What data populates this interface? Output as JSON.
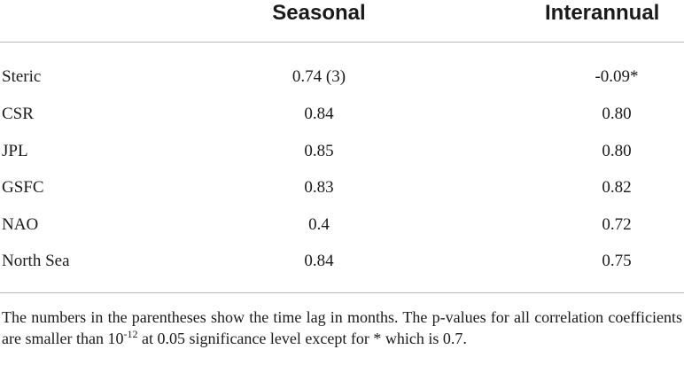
{
  "header": {
    "col_seasonal": "Seasonal",
    "col_interannual": "Interannual"
  },
  "rows": [
    {
      "label": "Steric",
      "seasonal": "0.74 (3)",
      "interannual": "-0.09*"
    },
    {
      "label": "CSR",
      "seasonal": "0.84",
      "interannual": "0.80"
    },
    {
      "label": "JPL",
      "seasonal": "0.85",
      "interannual": "0.80"
    },
    {
      "label": "GSFC",
      "seasonal": "0.83",
      "interannual": "0.82"
    },
    {
      "label": "NAO",
      "seasonal": "0.4",
      "interannual": "0.72"
    },
    {
      "label": "North Sea",
      "seasonal": "0.84",
      "interannual": "0.75"
    }
  ],
  "footnote": {
    "part1": "The numbers in the parentheses show the time lag in months. The p-values for all correlation coefficients are smaller than 10",
    "exponent": "-12",
    "part2": " at 0.05 significance level except for * which is 0.7."
  }
}
